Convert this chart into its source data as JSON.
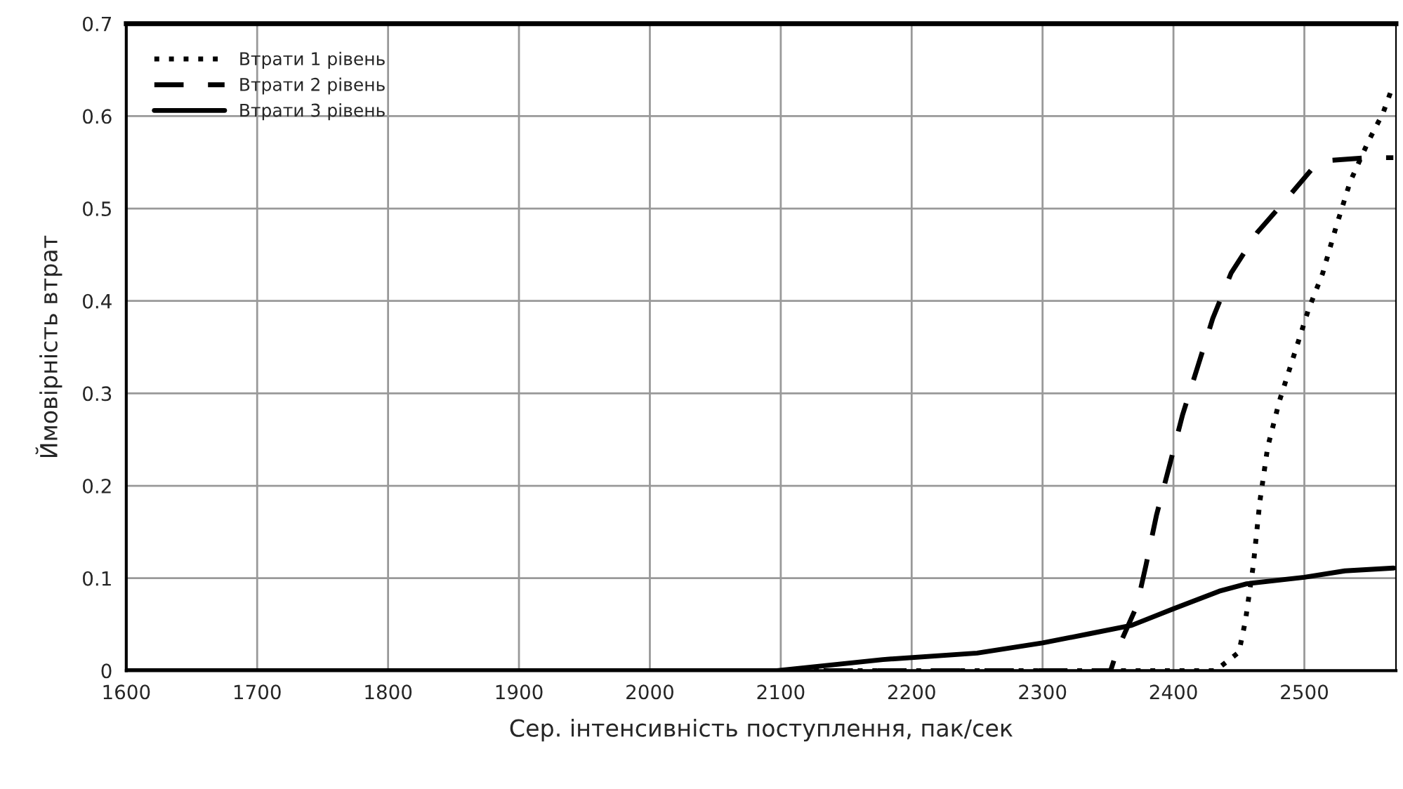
{
  "chart_data": {
    "type": "line",
    "xlabel": "Сер. інтенсивність поступлення, пак/сек",
    "ylabel": "Ймовірність втрат",
    "xlim": [
      1600,
      2570
    ],
    "xticks": [
      1600,
      1700,
      1800,
      1900,
      2000,
      2100,
      2200,
      2300,
      2400,
      2500
    ],
    "ylim": [
      0,
      0.7
    ],
    "yticks": [
      0,
      0.1,
      0.2,
      0.3,
      0.4,
      0.5,
      0.6,
      0.7
    ],
    "grid": true,
    "legend": "top left",
    "series": [
      {
        "name": "Втрати 1 рівень",
        "color": "#000000",
        "line_style": "dotted",
        "x": [
          1600,
          2432,
          2450,
          2455,
          2461,
          2466,
          2472,
          2481,
          2492,
          2503,
          2514,
          2524,
          2535,
          2549,
          2560,
          2568
        ],
        "values": [
          0,
          0,
          0.02,
          0.054,
          0.114,
          0.183,
          0.242,
          0.292,
          0.341,
          0.39,
          0.43,
          0.479,
          0.529,
          0.573,
          0.603,
          0.634
        ]
      },
      {
        "name": "Втрати 2 рівень",
        "color": "#000000",
        "line_style": "dashed",
        "x": [
          1600,
          2352,
          2357,
          2372,
          2379,
          2387,
          2397,
          2407,
          2419,
          2430,
          2444,
          2464,
          2485,
          2506,
          2519,
          2549,
          2568
        ],
        "values": [
          0,
          0,
          0.022,
          0.07,
          0.114,
          0.168,
          0.222,
          0.277,
          0.331,
          0.381,
          0.43,
          0.474,
          0.508,
          0.543,
          0.552,
          0.555,
          0.555
        ]
      },
      {
        "name": "Втрати 3 рівень",
        "color": "#000000",
        "line_style": "solid",
        "x": [
          1600,
          2097,
          2178,
          2250,
          2300,
          2336,
          2368,
          2400,
          2435,
          2456,
          2500,
          2531,
          2568
        ],
        "values": [
          0,
          0,
          0.012,
          0.019,
          0.03,
          0.04,
          0.049,
          0.067,
          0.086,
          0.094,
          0.101,
          0.108,
          0.111
        ]
      }
    ]
  }
}
